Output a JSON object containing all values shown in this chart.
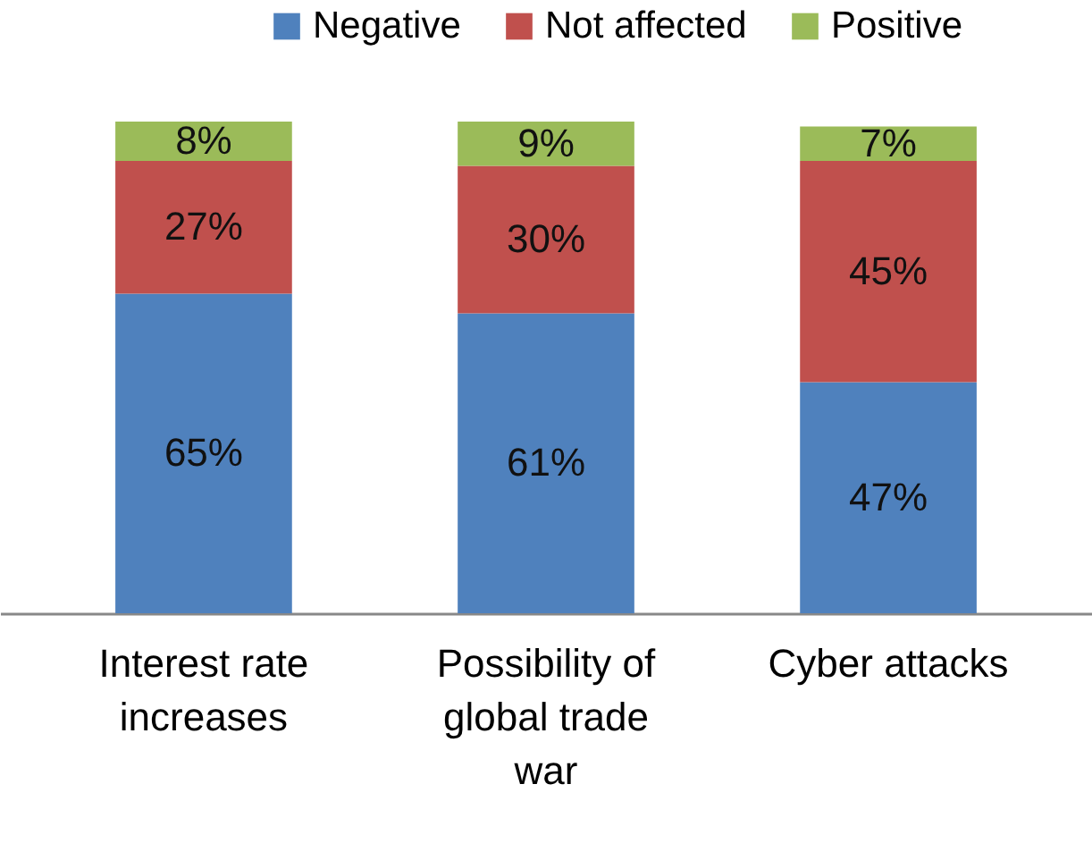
{
  "chart_data": {
    "type": "bar",
    "stacked": true,
    "legend": "top",
    "categories": [
      "Interest rate increases",
      "Possibility of global trade war",
      "Cyber attacks"
    ],
    "series": [
      {
        "name": "Negative",
        "color": "#4f81bd",
        "values": [
          65,
          61,
          47
        ],
        "value_labels": [
          "65%",
          "61%",
          "47%"
        ]
      },
      {
        "name": "Not affected",
        "color": "#c0504d",
        "values": [
          27,
          30,
          45
        ],
        "value_labels": [
          "27%",
          "30%",
          "45%"
        ]
      },
      {
        "name": "Positive",
        "color": "#9bbb59",
        "values": [
          8,
          9,
          7
        ],
        "value_labels": [
          "8%",
          "9%",
          "7%"
        ]
      }
    ]
  }
}
